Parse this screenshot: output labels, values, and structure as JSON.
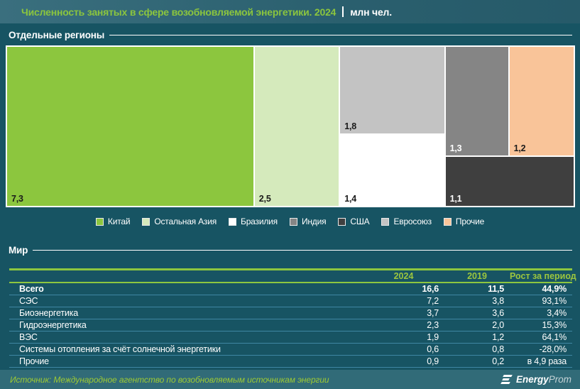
{
  "header": {
    "title": "Численность занятых в сфере возобновляемой энергетики. 2024",
    "unit": "млн чел."
  },
  "sections": {
    "regions_label": "Отдельные регионы",
    "world_label": "Мир"
  },
  "chart_data": [
    {
      "type": "treemap",
      "title": "Отдельные регионы",
      "unit": "млн чел.",
      "cells": [
        {
          "label": "Китай",
          "value": "7,3",
          "num": 7.3,
          "color": "#8cc63e",
          "text_color": "#1a1a1a"
        },
        {
          "label": "Остальная Азия",
          "value": "2,5",
          "num": 2.5,
          "color": "#d5eabc",
          "text_color": "#1a1a1a"
        },
        {
          "label": "Евросоюз",
          "value": "1,8",
          "num": 1.8,
          "color": "#c3c3c3",
          "text_color": "#1a1a1a"
        },
        {
          "label": "Бразилия",
          "value": "1,4",
          "num": 1.4,
          "color": "#ffffff",
          "text_color": "#1a1a1a"
        },
        {
          "label": "Индия",
          "value": "1,3",
          "num": 1.3,
          "color": "#858585",
          "text_color": "#ffffff"
        },
        {
          "label": "Прочие",
          "value": "1,2",
          "num": 1.2,
          "color": "#f9c499",
          "text_color": "#1a1a1a"
        },
        {
          "label": "США",
          "value": "1,1",
          "num": 1.1,
          "color": "#3f3f3f",
          "text_color": "#ffffff"
        }
      ],
      "legend": [
        {
          "label": "Китай",
          "color": "#8cc63e"
        },
        {
          "label": "Остальная Азия",
          "color": "#d5eabc"
        },
        {
          "label": "Бразилия",
          "color": "#ffffff"
        },
        {
          "label": "Индия",
          "color": "#858585"
        },
        {
          "label": "США",
          "color": "#3f3f3f"
        },
        {
          "label": "Евросоюз",
          "color": "#c3c3c3"
        },
        {
          "label": "Прочие",
          "color": "#f9c499"
        }
      ]
    },
    {
      "type": "table",
      "title": "Мир",
      "columns": [
        "",
        "2024",
        "2019",
        "Рост за период"
      ],
      "rows": [
        [
          "Всего",
          "16,6",
          "11,5",
          "44,9%"
        ],
        [
          "СЭС",
          "7,2",
          "3,8",
          "93,1%"
        ],
        [
          "Биоэнергетика",
          "3,7",
          "3,6",
          "3,4%"
        ],
        [
          "Гидроэнергетика",
          "2,3",
          "2,0",
          "15,3%"
        ],
        [
          "ВЭС",
          "1,9",
          "1,2",
          "64,1%"
        ],
        [
          "Системы отопления за счёт солнечной энергетики",
          "0,6",
          "0,8",
          "-28,0%"
        ],
        [
          "Прочие",
          "0,9",
          "0,2",
          "в 4,9 раза"
        ]
      ]
    }
  ],
  "footer": {
    "source": "Источник: Международное агентство по возобновляемым источникам энергии",
    "logo_bold": "Energy",
    "logo_light": "Prom"
  },
  "colors": {
    "accent_green": "#8dc63f",
    "background": "#175463",
    "title_band": "#2e6371",
    "footer_band": "#316b78",
    "row_separator": "#3f86a3",
    "text_white": "#ffffff"
  }
}
